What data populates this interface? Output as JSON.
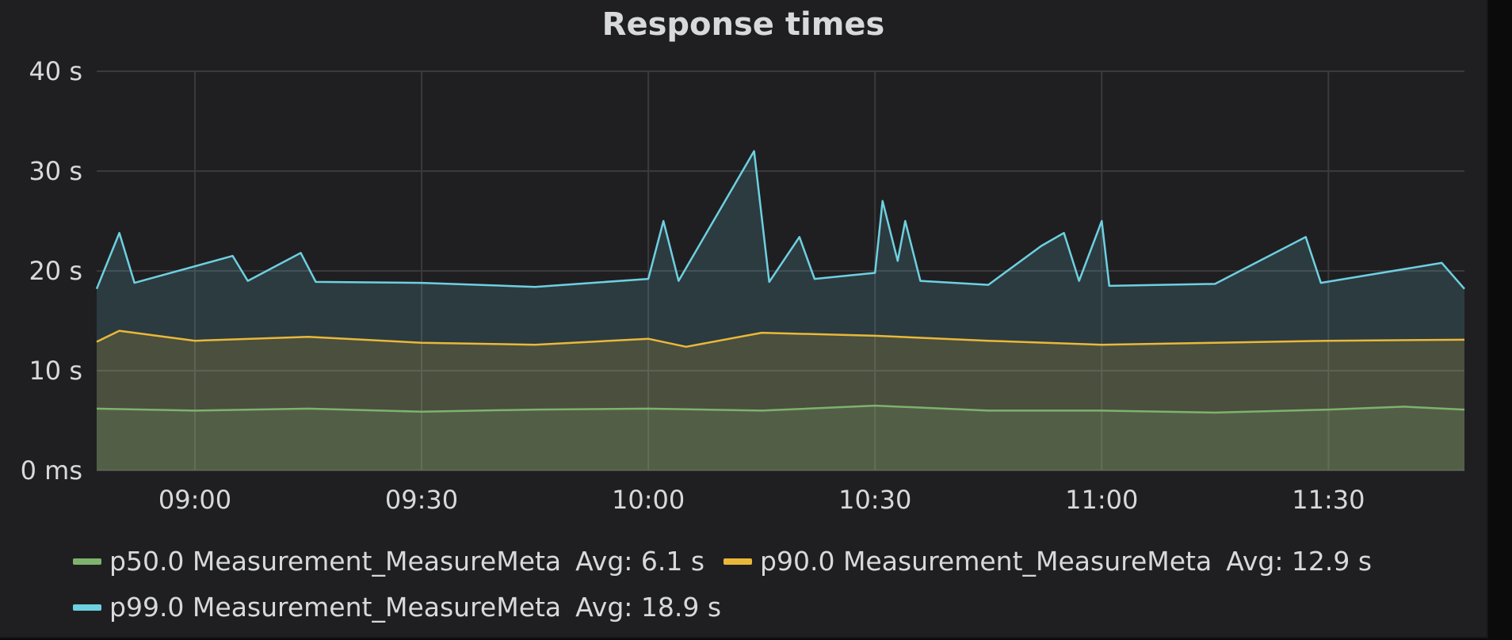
{
  "panel": {
    "title": "Response times"
  },
  "colors": {
    "background": "#1f1f22",
    "grid": "#3a3a3d",
    "text": "#d8d9da"
  },
  "chart_data": {
    "type": "area",
    "title": "Response times",
    "xlabel": "",
    "ylabel": "",
    "x_range": [
      "08:47",
      "11:48"
    ],
    "x_ticks": [
      "09:00",
      "09:30",
      "10:00",
      "10:30",
      "11:00",
      "11:30"
    ],
    "y_ticks": [
      "0 ms",
      "10 s",
      "20 s",
      "30 s",
      "40 s"
    ],
    "ylim": [
      0,
      40
    ],
    "grid": true,
    "legend_position": "bottom",
    "series": [
      {
        "name": "p50.0 Measurement_MeasureMeta",
        "avg": "Avg: 6.1 s",
        "color": "#7eb26d",
        "fill": true,
        "points": [
          [
            "08:47",
            6.2
          ],
          [
            "09:00",
            6.0
          ],
          [
            "09:15",
            6.2
          ],
          [
            "09:30",
            5.9
          ],
          [
            "09:45",
            6.1
          ],
          [
            "10:00",
            6.2
          ],
          [
            "10:15",
            6.0
          ],
          [
            "10:30",
            6.5
          ],
          [
            "10:45",
            6.0
          ],
          [
            "11:00",
            6.0
          ],
          [
            "11:15",
            5.8
          ],
          [
            "11:30",
            6.1
          ],
          [
            "11:40",
            6.4
          ],
          [
            "11:48",
            6.1
          ]
        ]
      },
      {
        "name": "p90.0 Measurement_MeasureMeta",
        "avg": "Avg: 12.9 s",
        "color": "#eab839",
        "fill": true,
        "points": [
          [
            "08:47",
            12.9
          ],
          [
            "08:50",
            14.0
          ],
          [
            "09:00",
            13.0
          ],
          [
            "09:15",
            13.4
          ],
          [
            "09:30",
            12.8
          ],
          [
            "09:45",
            12.6
          ],
          [
            "10:00",
            13.2
          ],
          [
            "10:05",
            12.4
          ],
          [
            "10:15",
            13.8
          ],
          [
            "10:30",
            13.5
          ],
          [
            "10:45",
            13.0
          ],
          [
            "11:00",
            12.6
          ],
          [
            "11:15",
            12.8
          ],
          [
            "11:30",
            13.0
          ],
          [
            "11:48",
            13.1
          ]
        ]
      },
      {
        "name": "p99.0 Measurement_MeasureMeta",
        "avg": "Avg: 18.9 s",
        "color": "#6ed0e0",
        "fill": true,
        "points": [
          [
            "08:47",
            18.2
          ],
          [
            "08:50",
            23.8
          ],
          [
            "08:52",
            18.8
          ],
          [
            "09:05",
            21.5
          ],
          [
            "09:07",
            19.0
          ],
          [
            "09:14",
            21.8
          ],
          [
            "09:16",
            18.9
          ],
          [
            "09:30",
            18.8
          ],
          [
            "09:45",
            18.4
          ],
          [
            "10:00",
            19.2
          ],
          [
            "10:02",
            25.0
          ],
          [
            "10:04",
            19.0
          ],
          [
            "10:14",
            32.0
          ],
          [
            "10:16",
            18.9
          ],
          [
            "10:20",
            23.4
          ],
          [
            "10:22",
            19.2
          ],
          [
            "10:30",
            19.8
          ],
          [
            "10:31",
            27.0
          ],
          [
            "10:33",
            21.0
          ],
          [
            "10:34",
            25.0
          ],
          [
            "10:36",
            19.0
          ],
          [
            "10:45",
            18.6
          ],
          [
            "10:52",
            22.5
          ],
          [
            "10:55",
            23.8
          ],
          [
            "10:57",
            19.0
          ],
          [
            "11:00",
            25.0
          ],
          [
            "11:01",
            18.5
          ],
          [
            "11:15",
            18.7
          ],
          [
            "11:27",
            23.4
          ],
          [
            "11:29",
            18.8
          ],
          [
            "11:45",
            20.8
          ],
          [
            "11:48",
            18.2
          ]
        ]
      }
    ]
  }
}
